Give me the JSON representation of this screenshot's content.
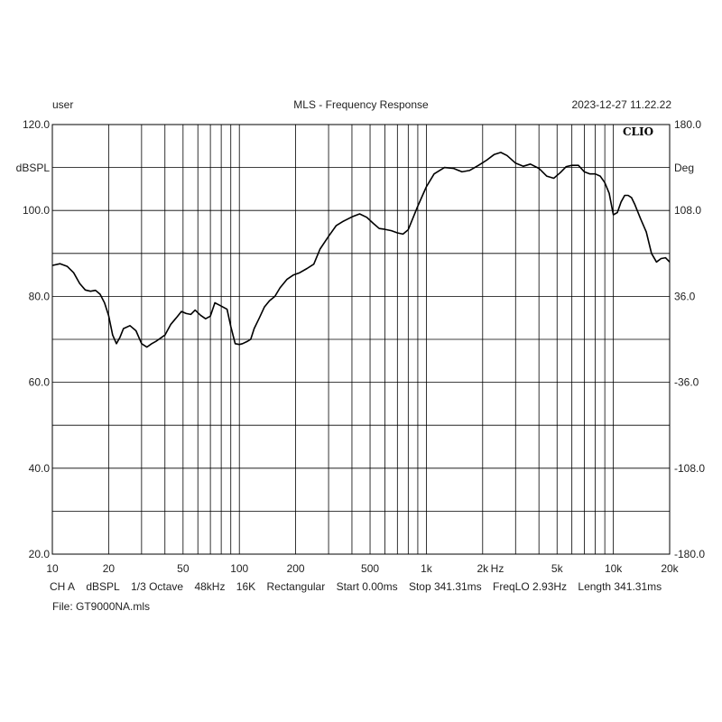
{
  "header": {
    "user": "user",
    "title": "MLS - Frequency Response",
    "datetime": "2023-12-27 11.22.22"
  },
  "footer": {
    "info": [
      "CH A",
      "dBSPL",
      "1/3 Octave",
      "48kHz",
      "16K",
      "Rectangular",
      "Start 0.00ms",
      "Stop 341.31ms",
      "FreqLO 2.93Hz",
      "Length 341.31ms"
    ],
    "file": "File: GT9000NA.mls"
  },
  "chart_data": {
    "type": "line",
    "watermark": "CLIO",
    "x_scale": "log",
    "xlim": [
      10,
      20000
    ],
    "ylim": [
      20,
      120
    ],
    "y2lim": [
      -180,
      180
    ],
    "ylabel": "dBSPL",
    "y2label": "Deg",
    "x_unit_label": "Hz",
    "grid": true,
    "x_ticks": [
      {
        "value": 10,
        "label": "10"
      },
      {
        "value": 20,
        "label": "20"
      },
      {
        "value": 50,
        "label": "50"
      },
      {
        "value": 100,
        "label": "100"
      },
      {
        "value": 200,
        "label": "200"
      },
      {
        "value": 500,
        "label": "500"
      },
      {
        "value": 1000,
        "label": "1k"
      },
      {
        "value": 2000,
        "label": "2k"
      },
      {
        "value": 5000,
        "label": "5k"
      },
      {
        "value": 10000,
        "label": "10k"
      },
      {
        "value": 20000,
        "label": "20k"
      }
    ],
    "y_ticks": [
      {
        "value": 120,
        "label": "120.0"
      },
      {
        "value": 100,
        "label": "100.0"
      },
      {
        "value": 80,
        "label": "80.0"
      },
      {
        "value": 60,
        "label": "60.0"
      },
      {
        "value": 40,
        "label": "40.0"
      },
      {
        "value": 20,
        "label": "20.0"
      }
    ],
    "y2_ticks": [
      {
        "value": 180,
        "label": "180.0"
      },
      {
        "value": 108,
        "label": "108.0"
      },
      {
        "value": 36,
        "label": "36.0"
      },
      {
        "value": -36,
        "label": "-36.0"
      },
      {
        "value": -108,
        "label": "-108.0"
      },
      {
        "value": -180,
        "label": "-180.0"
      }
    ],
    "series": [
      {
        "x": [
          10,
          11,
          12,
          13,
          14,
          15,
          16,
          17,
          18,
          19,
          20,
          21,
          22,
          23,
          24,
          26,
          28,
          30,
          32,
          34,
          36,
          40,
          43,
          46,
          49,
          52,
          55,
          58,
          62,
          66,
          70,
          74,
          78,
          82,
          86,
          90,
          95,
          100,
          104,
          110,
          115,
          120,
          128,
          136,
          145,
          155,
          165,
          180,
          195,
          210,
          230,
          250,
          270,
          300,
          330,
          360,
          400,
          440,
          480,
          520,
          560,
          600,
          650,
          700,
          750,
          800,
          900,
          1000,
          1100,
          1250,
          1400,
          1550,
          1700,
          1900,
          2100,
          2300,
          2500,
          2700,
          3000,
          3300,
          3600,
          4000,
          4400,
          4800,
          5200,
          5600,
          6000,
          6500,
          7000,
          7500,
          8000,
          8500,
          9000,
          9500,
          10000,
          10500,
          11000,
          11500,
          12000,
          12500,
          13000,
          14000,
          15000,
          16000,
          17000,
          18000,
          19000,
          20000
        ],
        "y": [
          87.2,
          87.6,
          87.0,
          85.5,
          83.0,
          81.5,
          81.2,
          81.4,
          80.5,
          78.5,
          75.5,
          71.0,
          69.0,
          70.5,
          72.5,
          73.2,
          72.0,
          69.0,
          68.2,
          69.0,
          69.6,
          71.0,
          73.5,
          75.0,
          76.5,
          76.0,
          75.8,
          76.8,
          75.6,
          74.8,
          75.4,
          78.5,
          78.0,
          77.5,
          77.0,
          73.0,
          69.0,
          68.8,
          69.0,
          69.5,
          70.0,
          72.5,
          75.0,
          77.5,
          79.0,
          80.0,
          82.0,
          84.0,
          85.0,
          85.5,
          86.5,
          87.5,
          91.0,
          94.0,
          96.5,
          97.5,
          98.5,
          99.2,
          98.4,
          97.0,
          95.8,
          95.6,
          95.3,
          94.8,
          94.5,
          95.5,
          101.0,
          105.5,
          108.5,
          110.0,
          109.8,
          109.0,
          109.3,
          110.5,
          111.7,
          113.0,
          113.5,
          112.8,
          111.0,
          110.3,
          110.8,
          109.8,
          108.0,
          107.5,
          108.8,
          110.2,
          110.5,
          110.5,
          109.0,
          108.5,
          108.5,
          108.0,
          106.5,
          104.0,
          99.0,
          99.5,
          102.0,
          103.5,
          103.5,
          103.0,
          101.5,
          98.0,
          95.0,
          90.0,
          88.0,
          88.8,
          89.0,
          88.0
        ]
      }
    ]
  }
}
